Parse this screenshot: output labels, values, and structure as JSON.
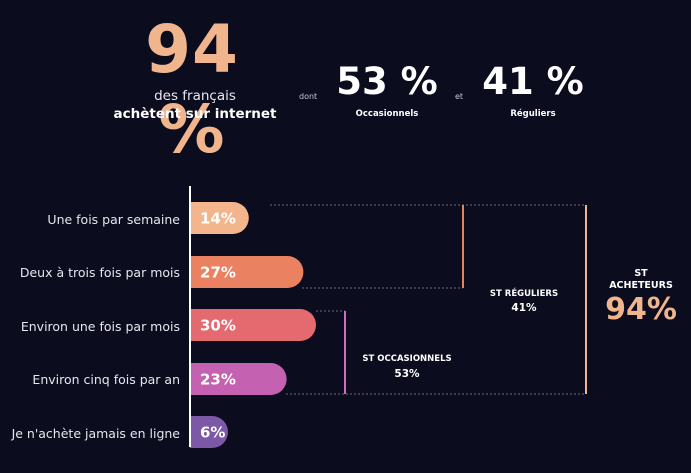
{
  "header": {
    "total_percent": "94 %",
    "total_line1": "des français",
    "total_line2": "achètent sur internet",
    "dont": "dont",
    "occasional_percent": "53 %",
    "occasional_label": "Occasionnels",
    "et": "et",
    "regular_percent": "41 %",
    "regular_label": "Réguliers"
  },
  "brackets": {
    "reguliers_title": "ST RÉGULIERS",
    "reguliers_value": "41%",
    "occasionnels_title": "ST OCCASIONNELS",
    "occasionnels_value": "53%",
    "acheteurs_title_1": "ST",
    "acheteurs_title_2": "ACHETEURS",
    "acheteurs_value": "94%"
  },
  "chart_data": {
    "type": "bar",
    "orientation": "horizontal",
    "categories": [
      "Une fois par semaine",
      "Deux à trois fois par mois",
      "Environ une fois par mois",
      "Environ cinq fois par an",
      "Je n'achète jamais en ligne"
    ],
    "values": [
      14,
      27,
      30,
      23,
      6
    ],
    "value_labels": [
      "14%",
      "27%",
      "30%",
      "23%",
      "6%"
    ],
    "colors": [
      "#f3b58c",
      "#ea8160",
      "#e56a70",
      "#c462b1",
      "#7d58a6"
    ],
    "accent": "#f0b58c"
  }
}
